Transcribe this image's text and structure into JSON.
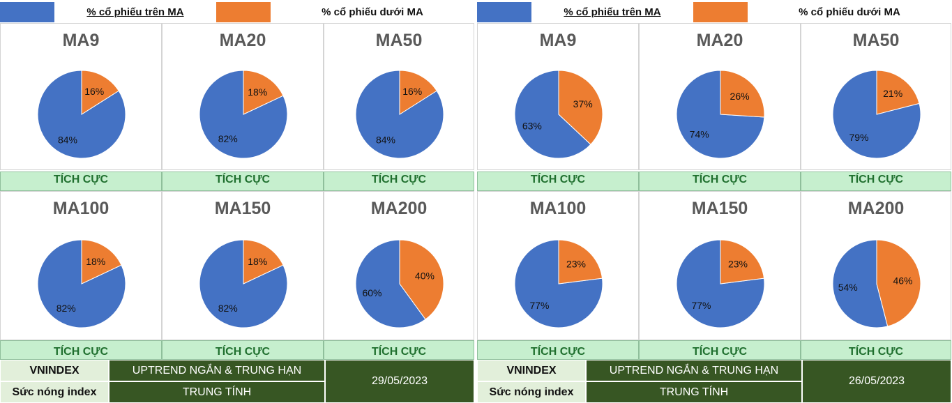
{
  "colors": {
    "above": "#4472c4",
    "below": "#ed7d31",
    "status_bg": "#c6efce",
    "status_text": "#1f6f2e",
    "footer_dark": "#375623",
    "footer_light": "#e2efda"
  },
  "legend": {
    "above_label": "% cổ phiếu trên MA",
    "below_label": "% cổ phiếu dưới MA"
  },
  "panels": [
    {
      "charts": [
        {
          "title": "MA9",
          "status": "TÍCH CỰC"
        },
        {
          "title": "MA20",
          "status": "TÍCH CỰC"
        },
        {
          "title": "MA50",
          "status": "TÍCH CỰC"
        },
        {
          "title": "MA100",
          "status": "TÍCH CỰC"
        },
        {
          "title": "MA150",
          "status": "TÍCH CỰC"
        },
        {
          "title": "MA200",
          "status": "TÍCH CỰC"
        }
      ],
      "footer": {
        "index_label": "VNINDEX",
        "heat_label": "Sức nóng index",
        "trend": "UPTREND NGẮN & TRUNG HẠN",
        "heat": "TRUNG TÍNH",
        "date": "29/05/2023"
      }
    },
    {
      "charts": [
        {
          "title": "MA9",
          "status": "TÍCH CỰC"
        },
        {
          "title": "MA20",
          "status": "TÍCH CỰC"
        },
        {
          "title": "MA50",
          "status": "TÍCH CỰC"
        },
        {
          "title": "MA100",
          "status": "TÍCH CỰC"
        },
        {
          "title": "MA150",
          "status": "TÍCH CỰC"
        },
        {
          "title": "MA200",
          "status": "TÍCH CỰC"
        }
      ],
      "footer": {
        "index_label": "VNINDEX",
        "heat_label": "Sức nóng index",
        "trend": "UPTREND NGẮN & TRUNG HẠN",
        "heat": "TRUNG TÍNH",
        "date": "26/05/2023"
      }
    }
  ],
  "chart_data": [
    {
      "type": "pie",
      "title": "MA9",
      "categories": [
        "% cổ phiếu trên MA",
        "% cổ phiếu dưới MA"
      ],
      "values": [
        84,
        16
      ],
      "labels": [
        "84%",
        "16%"
      ]
    },
    {
      "type": "pie",
      "title": "MA20",
      "categories": [
        "% cổ phiếu trên MA",
        "% cổ phiếu dưới MA"
      ],
      "values": [
        82,
        18
      ],
      "labels": [
        "82%",
        "18%"
      ]
    },
    {
      "type": "pie",
      "title": "MA50",
      "categories": [
        "% cổ phiếu trên MA",
        "% cổ phiếu dưới MA"
      ],
      "values": [
        84,
        16
      ],
      "labels": [
        "84%",
        "16%"
      ]
    },
    {
      "type": "pie",
      "title": "MA100",
      "categories": [
        "% cổ phiếu trên MA",
        "% cổ phiếu dưới MA"
      ],
      "values": [
        82,
        18
      ],
      "labels": [
        "82%",
        "18%"
      ]
    },
    {
      "type": "pie",
      "title": "MA150",
      "categories": [
        "% cổ phiếu trên MA",
        "% cổ phiếu dưới MA"
      ],
      "values": [
        82,
        18
      ],
      "labels": [
        "82%",
        "18%"
      ]
    },
    {
      "type": "pie",
      "title": "MA200",
      "categories": [
        "% cổ phiếu trên MA",
        "% cổ phiếu dưới MA"
      ],
      "values": [
        60,
        40
      ],
      "labels": [
        "60%",
        "40%"
      ]
    },
    {
      "type": "pie",
      "title": "MA9",
      "categories": [
        "% cổ phiếu trên MA",
        "% cổ phiếu dưới MA"
      ],
      "values": [
        63,
        37
      ],
      "labels": [
        "63%",
        "37%"
      ]
    },
    {
      "type": "pie",
      "title": "MA20",
      "categories": [
        "% cổ phiếu trên MA",
        "% cổ phiếu dưới MA"
      ],
      "values": [
        74,
        26
      ],
      "labels": [
        "74%",
        "26%"
      ]
    },
    {
      "type": "pie",
      "title": "MA50",
      "categories": [
        "% cổ phiếu trên MA",
        "% cổ phiếu dưới MA"
      ],
      "values": [
        79,
        21
      ],
      "labels": [
        "79%",
        "21%"
      ]
    },
    {
      "type": "pie",
      "title": "MA100",
      "categories": [
        "% cổ phiếu trên MA",
        "% cổ phiếu dưới MA"
      ],
      "values": [
        77,
        23
      ],
      "labels": [
        "77%",
        "23%"
      ]
    },
    {
      "type": "pie",
      "title": "MA150",
      "categories": [
        "% cổ phiếu trên MA",
        "% cổ phiếu dưới MA"
      ],
      "values": [
        77,
        23
      ],
      "labels": [
        "77%",
        "23%"
      ]
    },
    {
      "type": "pie",
      "title": "MA200",
      "categories": [
        "% cổ phiếu trên MA",
        "% cổ phiếu dưới MA"
      ],
      "values": [
        54,
        46
      ],
      "labels": [
        "54%",
        "46%"
      ]
    }
  ]
}
